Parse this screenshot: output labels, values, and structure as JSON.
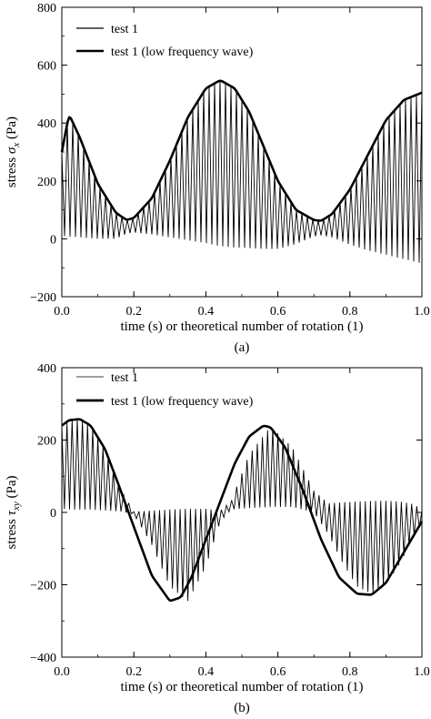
{
  "chart_data": [
    {
      "type": "line",
      "panel_caption": "(a)",
      "xlabel": "time (s) or theoretical number of rotation (1)",
      "ylabel": "stress σ_x (Pa)",
      "xlim": [
        0.0,
        1.0
      ],
      "ylim": [
        -200,
        800
      ],
      "xticks": [
        "0.0",
        "0.2",
        "0.4",
        "0.6",
        "0.8",
        "1.0"
      ],
      "yticks": [
        "800",
        "600",
        "400",
        "200",
        "0",
        "−200"
      ],
      "legend": {
        "placement": "top-left",
        "entries": [
          "test 1",
          "test 1 (low frequency wave)"
        ]
      },
      "grid": false,
      "series": [
        {
          "name": "test 1",
          "style": "thin",
          "oscillation_cycles": 66,
          "x": [
            0.0,
            0.02,
            0.05,
            0.1,
            0.15,
            0.18,
            0.2,
            0.25,
            0.3,
            0.35,
            0.4,
            0.44,
            0.48,
            0.52,
            0.56,
            0.6,
            0.65,
            0.7,
            0.72,
            0.75,
            0.8,
            0.85,
            0.9,
            0.95,
            1.0
          ],
          "upper": [
            300,
            430,
            350,
            190,
            90,
            65,
            72,
            140,
            270,
            420,
            520,
            548,
            520,
            440,
            320,
            200,
            100,
            65,
            62,
            85,
            170,
            290,
            410,
            480,
            505
          ],
          "lower": [
            10,
            8,
            5,
            0,
            0,
            18,
            22,
            15,
            5,
            -5,
            -15,
            -25,
            -30,
            -32,
            -35,
            -35,
            -18,
            8,
            12,
            5,
            -20,
            -40,
            -55,
            -70,
            -85
          ]
        },
        {
          "name": "test 1 (low frequency wave)",
          "style": "thick",
          "x": [
            0.0,
            0.02,
            0.05,
            0.1,
            0.15,
            0.18,
            0.2,
            0.25,
            0.3,
            0.35,
            0.4,
            0.44,
            0.48,
            0.52,
            0.56,
            0.6,
            0.65,
            0.7,
            0.72,
            0.75,
            0.8,
            0.85,
            0.9,
            0.95,
            1.0
          ],
          "y": [
            300,
            430,
            350,
            190,
            90,
            65,
            72,
            140,
            270,
            420,
            520,
            548,
            520,
            440,
            320,
            200,
            100,
            65,
            62,
            85,
            170,
            290,
            410,
            480,
            505
          ]
        }
      ]
    },
    {
      "type": "line",
      "panel_caption": "(b)",
      "xlabel": "time (s) or theoretical number of rotation (1)",
      "ylabel": "stress τ_xy (Pa)",
      "xlim": [
        0.0,
        1.0
      ],
      "ylim": [
        -400,
        400
      ],
      "xticks": [
        "0.0",
        "0.2",
        "0.4",
        "0.6",
        "0.8",
        "1.0"
      ],
      "yticks": [
        "400",
        "200",
        "0",
        "−200",
        "−400"
      ],
      "legend": {
        "placement": "top-left",
        "entries": [
          "test 1",
          "test 1 (low frequency wave)"
        ]
      },
      "grid": false,
      "series": [
        {
          "name": "test 1",
          "style": "thin",
          "oscillation_cycles": 70,
          "x": [
            0.0,
            0.03,
            0.05,
            0.08,
            0.12,
            0.16,
            0.2,
            0.25,
            0.3,
            0.35,
            0.4,
            0.44,
            0.47,
            0.52,
            0.58,
            0.64,
            0.7,
            0.74,
            0.78,
            0.82,
            0.86,
            0.9,
            0.94,
            0.98,
            1.0
          ],
          "upper": [
            240,
            258,
            260,
            240,
            170,
            70,
            2,
            5,
            8,
            10,
            10,
            5,
            30,
            160,
            238,
            180,
            60,
            25,
            28,
            30,
            32,
            32,
            30,
            22,
            5
          ],
          "lower": [
            10,
            8,
            8,
            8,
            5,
            3,
            -5,
            -90,
            -205,
            -245,
            -150,
            -25,
            8,
            12,
            15,
            15,
            0,
            -60,
            -140,
            -205,
            -225,
            -200,
            -140,
            -60,
            -30
          ]
        },
        {
          "name": "test 1 (low frequency wave)",
          "style": "thick",
          "x": [
            0.0,
            0.02,
            0.05,
            0.08,
            0.12,
            0.16,
            0.2,
            0.25,
            0.3,
            0.33,
            0.36,
            0.4,
            0.44,
            0.48,
            0.52,
            0.56,
            0.58,
            0.62,
            0.67,
            0.72,
            0.77,
            0.82,
            0.86,
            0.9,
            0.95,
            1.0
          ],
          "y": [
            240,
            255,
            258,
            240,
            175,
            70,
            -40,
            -175,
            -245,
            -235,
            -180,
            -75,
            30,
            135,
            210,
            240,
            235,
            180,
            60,
            -75,
            -180,
            -225,
            -228,
            -195,
            -110,
            -25
          ]
        }
      ]
    }
  ]
}
